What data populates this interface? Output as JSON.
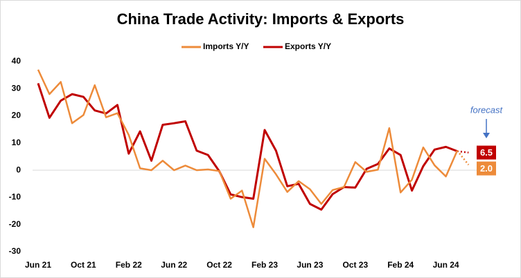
{
  "chart_data": {
    "type": "line",
    "title": "China Trade Activity: Imports & Exports",
    "categories": [
      "Jun 21",
      null,
      null,
      null,
      "Oct 21",
      null,
      null,
      null,
      "Feb 22",
      null,
      null,
      null,
      "Jun 22",
      null,
      null,
      null,
      "Oct 22",
      null,
      null,
      null,
      "Feb 23",
      null,
      null,
      null,
      "Jun 23",
      null,
      null,
      null,
      "Oct 23",
      null,
      null,
      null,
      "Feb 24",
      null,
      null,
      null,
      "Jun 24",
      null,
      null
    ],
    "series": [
      {
        "name": "Imports Y/Y",
        "color": "#ed8b3a",
        "values": [
          37,
          28,
          32.5,
          17.3,
          20.3,
          31.3,
          19.5,
          21,
          13,
          0.7,
          0,
          3.5,
          0,
          1.7,
          0,
          0.3,
          -0.3,
          -10.5,
          -7.5,
          -21,
          4.2,
          -1.5,
          -8,
          -4,
          -7,
          -12.4,
          -7.3,
          -6.2,
          3,
          -0.6,
          0.2,
          15.5,
          -8.2,
          -3.5,
          8.4,
          1.8,
          -2.3,
          7.2,
          2.0
        ],
        "value_labels": [
          null,
          null,
          null,
          null,
          null,
          null,
          null,
          null,
          null,
          null,
          null,
          null,
          null,
          null,
          null,
          null,
          null,
          null,
          null,
          null,
          null,
          null,
          null,
          null,
          null,
          null,
          null,
          null,
          null,
          null,
          null,
          null,
          null,
          null,
          null,
          null,
          null,
          null,
          "2.0"
        ]
      },
      {
        "name": "Exports Y/Y",
        "color": "#c00000",
        "values": [
          32,
          19.3,
          25.6,
          28,
          27,
          22,
          20.9,
          24,
          6.1,
          14.3,
          3.5,
          16.7,
          17.3,
          18,
          7.2,
          5.6,
          -0.4,
          -8.9,
          -9.9,
          -10.5,
          14.8,
          7.2,
          -5.9,
          -5,
          -12.4,
          -14.5,
          -8.8,
          -6.2,
          -6.4,
          0.5,
          2.3,
          8,
          5.6,
          -7.5,
          1.5,
          7.6,
          8.6,
          7,
          6.5
        ],
        "value_labels": [
          null,
          null,
          null,
          null,
          null,
          null,
          null,
          null,
          null,
          null,
          null,
          null,
          null,
          null,
          null,
          null,
          null,
          null,
          null,
          null,
          null,
          null,
          null,
          null,
          null,
          null,
          null,
          null,
          null,
          null,
          null,
          null,
          null,
          null,
          null,
          null,
          null,
          null,
          "6.5"
        ]
      }
    ],
    "annotation": "forecast",
    "ylim": [
      -30,
      40
    ],
    "yticks": [
      -30,
      -20,
      -10,
      0,
      10,
      20,
      30,
      40
    ]
  }
}
